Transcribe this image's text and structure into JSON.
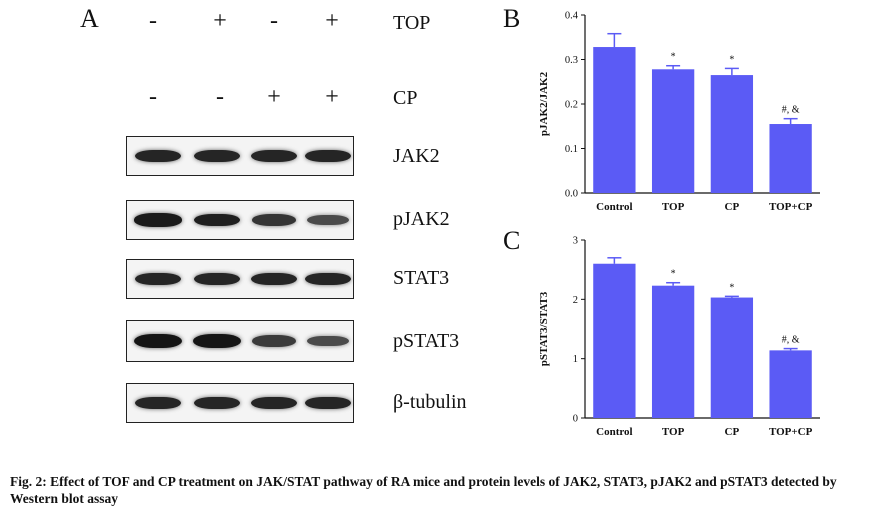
{
  "panel_a": {
    "letter": "A",
    "top_row": {
      "label": "TOP",
      "signs": [
        "-",
        "+",
        "-",
        "+"
      ]
    },
    "cp_row": {
      "label": "CP",
      "signs": [
        "-",
        "-",
        "+",
        "+"
      ]
    },
    "blots": [
      {
        "label": "JAK2",
        "intensity": [
          0.85,
          0.85,
          0.85,
          0.85
        ]
      },
      {
        "label": "pJAK2",
        "intensity": [
          0.95,
          0.9,
          0.7,
          0.5
        ]
      },
      {
        "label": "STAT3",
        "intensity": [
          0.85,
          0.85,
          0.85,
          0.85
        ]
      },
      {
        "label": "pSTAT3",
        "intensity": [
          1.0,
          0.98,
          0.65,
          0.5
        ]
      },
      {
        "label": "β-tubulin",
        "intensity": [
          0.85,
          0.85,
          0.85,
          0.85
        ]
      }
    ]
  },
  "chart_data": [
    {
      "panel": "B",
      "type": "bar",
      "categories": [
        "Control",
        "TOP",
        "CP",
        "TOP+CP"
      ],
      "values": [
        0.328,
        0.278,
        0.265,
        0.155
      ],
      "errors": [
        0.03,
        0.008,
        0.015,
        0.012
      ],
      "annotations": [
        "",
        "*",
        "*",
        "#, &"
      ],
      "ylabel": "pJAK2/JAK2",
      "ylim": [
        0,
        0.4
      ],
      "yticks": [
        "0.0",
        "0.1",
        "0.2",
        "0.3",
        "0.4"
      ],
      "color": "#5b5bf5"
    },
    {
      "panel": "C",
      "type": "bar",
      "categories": [
        "Control",
        "TOP",
        "CP",
        "TOP+CP"
      ],
      "values": [
        2.6,
        2.23,
        2.03,
        1.14
      ],
      "errors": [
        0.1,
        0.05,
        0.02,
        0.03
      ],
      "annotations": [
        "",
        "*",
        "*",
        "#, &"
      ],
      "ylabel": "pSTAT3/STAT3",
      "ylim": [
        0,
        3
      ],
      "yticks": [
        "0",
        "1",
        "2",
        "3"
      ],
      "color": "#5b5bf5"
    }
  ],
  "caption": "Fig. 2: Effect of TOF and CP treatment on JAK/STAT pathway of RA mice and protein levels of JAK2, STAT3, pJAK2 and pSTAT3 detected by Western blot assay"
}
